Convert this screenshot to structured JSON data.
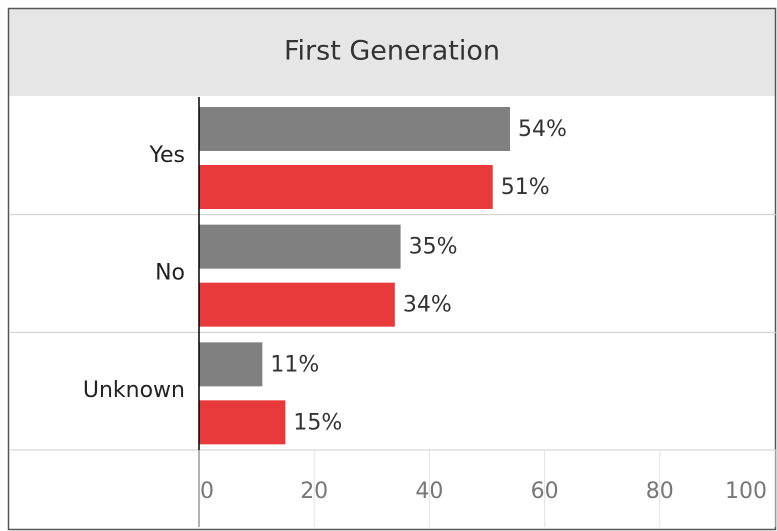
{
  "chart_data": {
    "type": "bar",
    "orientation": "horizontal",
    "title": "First Generation",
    "categories": [
      "Yes",
      "No",
      "Unknown"
    ],
    "series": [
      {
        "color": "#808080",
        "values": [
          54,
          35,
          11
        ],
        "value_labels": [
          "54%",
          "35%",
          "11%"
        ]
      },
      {
        "color": "#e8393b",
        "values": [
          51,
          34,
          15
        ],
        "value_labels": [
          "51%",
          "34%",
          "15%"
        ]
      }
    ],
    "xlim": [
      0,
      100
    ],
    "xticks": [
      0,
      20,
      40,
      60,
      80,
      100
    ]
  }
}
